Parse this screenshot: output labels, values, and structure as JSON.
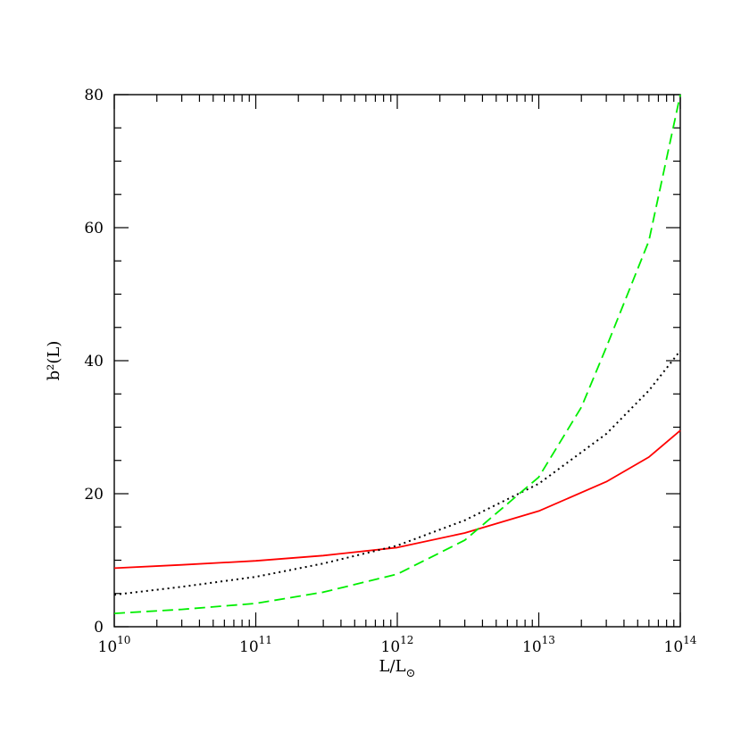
{
  "chart_data": {
    "type": "line",
    "title": "",
    "xlabel": "L/L",
    "xlabel_subscript": "⊙",
    "ylabel": "b²(L)",
    "xscale": "log",
    "xlim": [
      10000000000.0,
      100000000000000.0
    ],
    "ylim": [
      0,
      80
    ],
    "grid": false,
    "legend": "none",
    "x_ticks": [
      {
        "value": 10000000000.0,
        "base": "10",
        "exp": "10"
      },
      {
        "value": 100000000000.0,
        "base": "10",
        "exp": "11"
      },
      {
        "value": 1000000000000.0,
        "base": "10",
        "exp": "12"
      },
      {
        "value": 10000000000000.0,
        "base": "10",
        "exp": "13"
      },
      {
        "value": 100000000000000.0,
        "base": "10",
        "exp": "14"
      }
    ],
    "y_ticks": [
      0,
      20,
      40,
      60,
      80
    ],
    "series": [
      {
        "color": "#ff0000",
        "style": "solid",
        "x": [
          10000000000.0,
          30000000000.0,
          100000000000.0,
          300000000000.0,
          1000000000000.0,
          3000000000000.0,
          10000000000000.0,
          30000000000000.0,
          60000000000000.0,
          100000000000000.0
        ],
        "values": [
          8.8,
          9.3,
          9.9,
          10.7,
          11.9,
          14.1,
          17.4,
          21.8,
          25.5,
          29.5
        ]
      },
      {
        "color": "#000000",
        "style": "dotted",
        "x": [
          10000000000.0,
          30000000000.0,
          100000000000.0,
          300000000000.0,
          1000000000000.0,
          3000000000000.0,
          10000000000000.0,
          30000000000000.0,
          60000000000000.0,
          100000000000000.0
        ],
        "values": [
          4.8,
          6.0,
          7.5,
          9.5,
          12.2,
          16.0,
          21.5,
          29.0,
          35.5,
          41.5
        ]
      },
      {
        "color": "#00ee00",
        "style": "dashed",
        "x": [
          10000000000.0,
          30000000000.0,
          100000000000.0,
          300000000000.0,
          1000000000000.0,
          3000000000000.0,
          10000000000000.0,
          20000000000000.0,
          30000000000000.0,
          60000000000000.0,
          100000000000000.0
        ],
        "values": [
          2.0,
          2.6,
          3.5,
          5.2,
          7.9,
          13.0,
          22.5,
          33.0,
          42.0,
          58.0,
          80.0
        ]
      }
    ]
  }
}
